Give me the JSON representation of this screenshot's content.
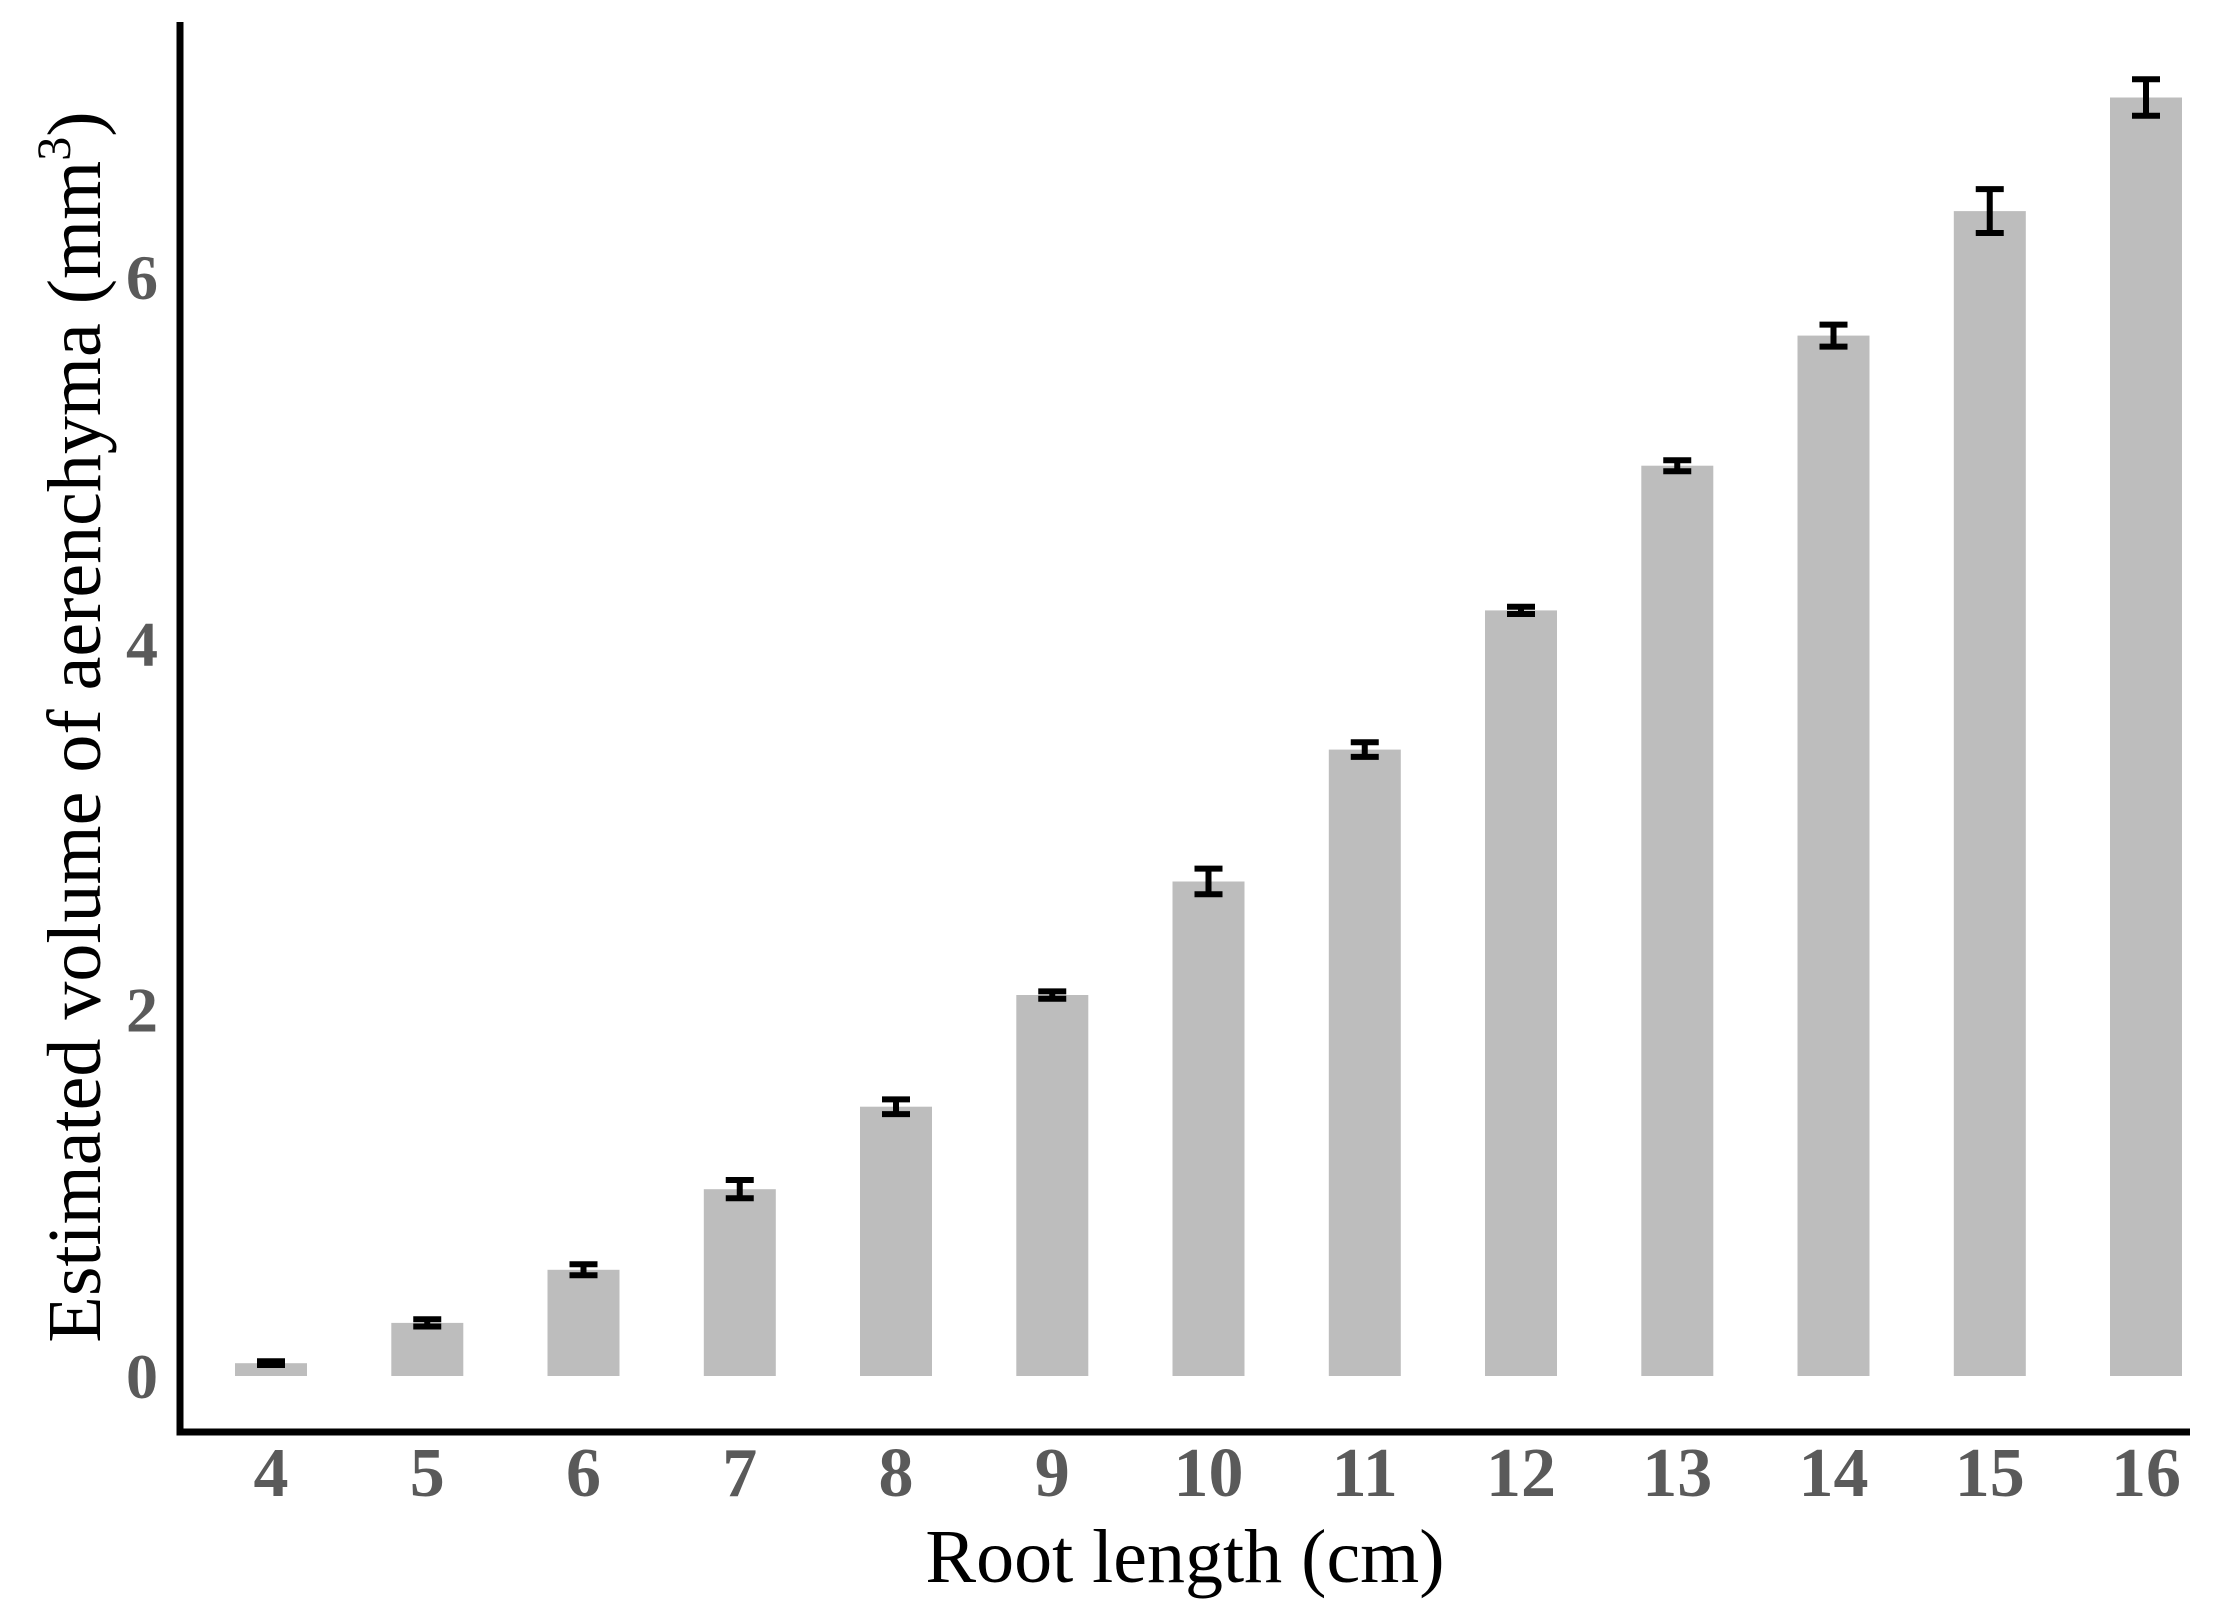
{
  "chart_data": {
    "type": "bar",
    "categories": [
      "4",
      "5",
      "6",
      "7",
      "8",
      "9",
      "10",
      "11",
      "12",
      "13",
      "14",
      "15",
      "16"
    ],
    "values": [
      0.07,
      0.29,
      0.58,
      1.02,
      1.47,
      2.08,
      2.7,
      3.42,
      4.18,
      4.97,
      5.68,
      6.36,
      6.98
    ],
    "errors": [
      0.01,
      0.02,
      0.03,
      0.05,
      0.04,
      0.02,
      0.07,
      0.04,
      0.02,
      0.03,
      0.06,
      0.12,
      0.1
    ],
    "xlabel": "Root length (cm)",
    "ylabel": "Estimated volume of aerenchyma (mm",
    "ylabel_superscript": "3",
    "ylabel_suffix": ")",
    "ylim": [
      -0.35,
      7.4
    ],
    "yticks": [
      0,
      2,
      4,
      6
    ],
    "bar_color": "#bdbdbd",
    "error_bar_color": "#000000",
    "tick_label_color": "#5a5a5a",
    "grid": false
  }
}
